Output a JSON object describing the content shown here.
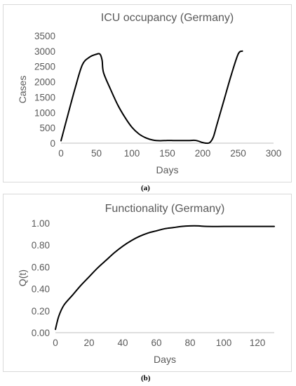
{
  "captions": {
    "a": "(a)",
    "b": "(b)"
  },
  "chart_data": [
    {
      "type": "line",
      "title": "ICU occupancy (Germany)",
      "xlabel": "Days",
      "ylabel": "Cases",
      "xlim": [
        0,
        300
      ],
      "ylim": [
        0,
        3500
      ],
      "xticks": [
        0,
        50,
        100,
        150,
        200,
        250,
        300
      ],
      "yticks": [
        0,
        500,
        1000,
        1500,
        2000,
        2500,
        3000,
        3500
      ],
      "xtick_labels": [
        "0",
        "50",
        "100",
        "150",
        "200",
        "250",
        "300"
      ],
      "ytick_labels": [
        "0",
        "500",
        "1000",
        "1500",
        "2000",
        "2500",
        "3000",
        "3500"
      ],
      "grid": false,
      "series": [
        {
          "x": [
            0,
            10,
            20,
            30,
            40,
            50,
            55,
            58,
            60,
            70,
            80,
            90,
            100,
            110,
            120,
            130,
            140,
            150,
            160,
            170,
            180,
            190,
            200,
            205,
            210,
            215,
            220,
            230,
            240,
            250,
            256
          ],
          "y": [
            80,
            950,
            1800,
            2550,
            2800,
            2900,
            2900,
            2700,
            2300,
            1750,
            1250,
            850,
            520,
            300,
            170,
            100,
            80,
            90,
            85,
            85,
            85,
            90,
            20,
            0,
            20,
            200,
            600,
            1400,
            2200,
            2900,
            3000
          ]
        }
      ]
    },
    {
      "type": "line",
      "title": "Functionality (Germany)",
      "xlabel": "Days",
      "ylabel": "Q(t)",
      "xlim": [
        0,
        130
      ],
      "ylim": [
        0,
        1
      ],
      "xticks": [
        0,
        20,
        40,
        60,
        80,
        100,
        120
      ],
      "yticks": [
        0,
        0.2,
        0.4,
        0.6,
        0.8,
        1.0
      ],
      "xtick_labels": [
        "0",
        "20",
        "40",
        "60",
        "80",
        "100",
        "120"
      ],
      "ytick_labels": [
        "0.00",
        "0.20",
        "0.40",
        "0.60",
        "0.80",
        "1.00"
      ],
      "grid": false,
      "series": [
        {
          "x": [
            0,
            2,
            5,
            10,
            15,
            20,
            25,
            30,
            35,
            40,
            45,
            50,
            55,
            60,
            65,
            70,
            75,
            80,
            85,
            90,
            100,
            110,
            120,
            130
          ],
          "y": [
            0.03,
            0.15,
            0.25,
            0.34,
            0.43,
            0.51,
            0.59,
            0.66,
            0.73,
            0.79,
            0.84,
            0.88,
            0.91,
            0.93,
            0.95,
            0.96,
            0.97,
            0.975,
            0.975,
            0.97,
            0.97,
            0.97,
            0.97,
            0.97
          ]
        }
      ]
    }
  ]
}
